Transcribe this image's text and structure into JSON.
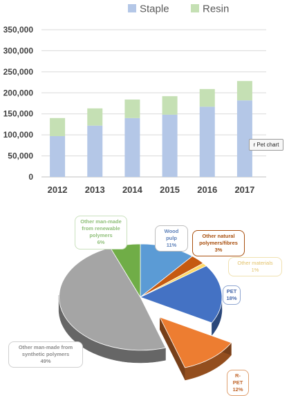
{
  "chart_data": [
    {
      "type": "bar",
      "stacked": true,
      "categories": [
        "2012",
        "2013",
        "2014",
        "2015",
        "2016",
        "2017"
      ],
      "series": [
        {
          "name": "Staple",
          "color": "#b4c7e7",
          "values": [
            97000,
            122000,
            140000,
            148000,
            167000,
            182000
          ]
        },
        {
          "name": "Resin",
          "color": "#c5e0b4",
          "values": [
            43000,
            41000,
            44000,
            44000,
            42000,
            46000
          ]
        }
      ],
      "yticks": [
        "0",
        "50,000",
        "100,000",
        "150,000",
        "200,000",
        "250,000",
        "300,000",
        "350,000"
      ],
      "ylim": [
        0,
        350000
      ],
      "grid": true,
      "legend": "top"
    },
    {
      "type": "pie",
      "style": "3d-exploded",
      "slices": [
        {
          "label": "Wood pulp",
          "percent": "11%",
          "value": 11,
          "color": "#5b9bd5",
          "label_color": "#5b7fb8"
        },
        {
          "label": "Other natural polymers/fibres",
          "percent": "3%",
          "value": 3,
          "color": "#c55a11",
          "label_color": "#a84e0c"
        },
        {
          "label": "Other materials",
          "percent": "1%",
          "value": 1,
          "color": "#ffd966",
          "label_color": "#e2c26a"
        },
        {
          "label": "PET",
          "percent": "18%",
          "value": 18,
          "color": "#4472c4",
          "label_color": "#4466aa"
        },
        {
          "label": "R-PET",
          "percent": "12%",
          "value": 12,
          "color": "#ed7d31",
          "label_color": "#c0652a",
          "exploded": true
        },
        {
          "label": "Other man-made from synthetic polymers",
          "percent": "49%",
          "value": 49,
          "color": "#a5a5a5",
          "label_color": "#8c8c8c"
        },
        {
          "label": "Other man-made from renewable polymers",
          "percent": "6%",
          "value": 6,
          "color": "#70ad47",
          "label_color": "#8fbf79"
        }
      ]
    }
  ],
  "ui": {
    "chart_button_label": "r Pet chart"
  },
  "callouts": {
    "wood_pulp": {
      "label": "Wood pulp",
      "percent": "11%"
    },
    "natural": {
      "line1": "Other natural",
      "line2": "polymers/fibres",
      "percent": "3%"
    },
    "other_materials": {
      "label": "Other materials",
      "percent": "1%"
    },
    "pet": {
      "label": "PET",
      "percent": "18%"
    },
    "rpet": {
      "label": "R-PET",
      "percent": "12%"
    },
    "synthetic": {
      "line1": "Other man-made from",
      "line2": "synthetic polymers",
      "percent": "49%"
    },
    "renewable": {
      "line1": "Other man-made",
      "line2": "from renewable",
      "line3": "polymers",
      "percent": "6%"
    }
  }
}
